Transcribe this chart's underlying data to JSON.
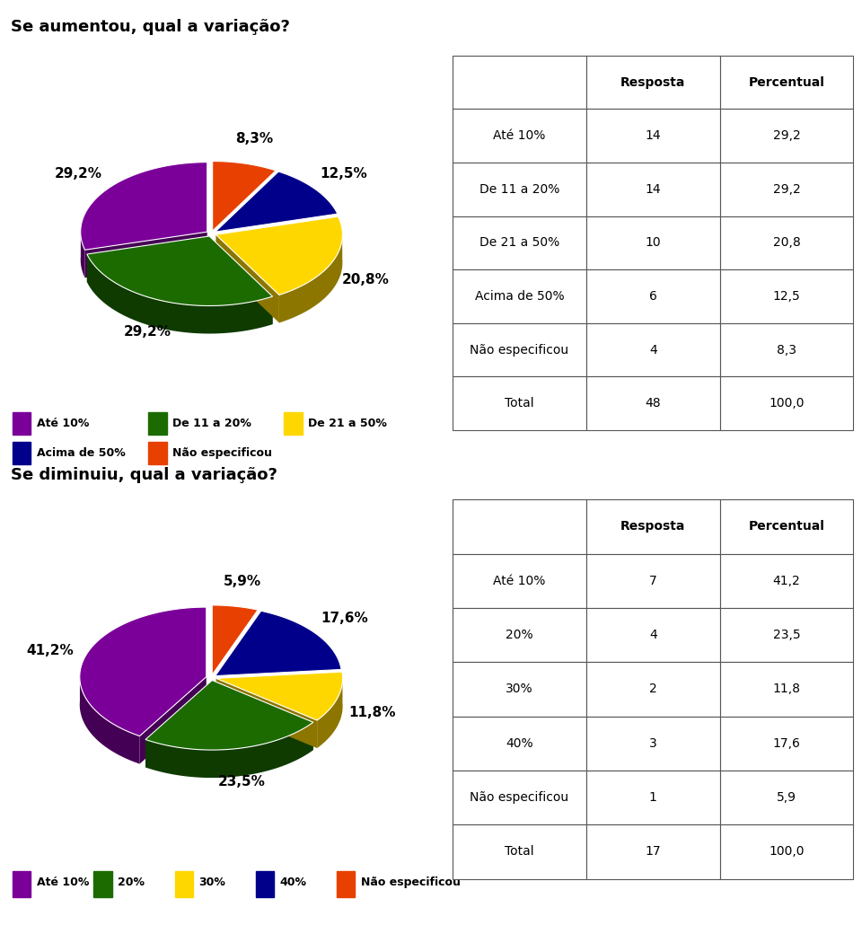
{
  "title1": "Se aumentou, qual a variação?",
  "title2": "Se diminuiu, qual a variação?",
  "title_bg": "#BDD7EE",
  "bg_color": "#FFFFFF",
  "pie1_labels": [
    "Até 10%",
    "De 11 a 20%",
    "De 21 a 50%",
    "Acima de 50%",
    "Não especificou"
  ],
  "pie1_values": [
    14,
    14,
    10,
    6,
    4
  ],
  "pie1_pct": [
    "29,2%",
    "29,2%",
    "20,8%",
    "12,5%",
    "8,3%"
  ],
  "pie1_colors": [
    "#7B0099",
    "#1B6B00",
    "#FFD700",
    "#00008B",
    "#E84000"
  ],
  "pie1_startangle": 90,
  "table1_rows": [
    "Até 10%",
    "De 11 a 20%",
    "De 21 a 50%",
    "Acima de 50%",
    "Não especificou",
    "Total"
  ],
  "table1_resposta": [
    "14",
    "14",
    "10",
    "6",
    "4",
    "48"
  ],
  "table1_percentual": [
    "29,2",
    "29,2",
    "20,8",
    "12,5",
    "8,3",
    "100,0"
  ],
  "pie2_labels": [
    "Até 10%",
    "20%",
    "30%",
    "40%",
    "Não especificou"
  ],
  "pie2_values": [
    7,
    4,
    2,
    3,
    1
  ],
  "pie2_pct": [
    "41,2%",
    "23,5%",
    "11,8%",
    "17,6%",
    "5,9%"
  ],
  "pie2_colors": [
    "#7B0099",
    "#1B6B00",
    "#FFD700",
    "#00008B",
    "#E84000"
  ],
  "pie2_startangle": 90,
  "table2_rows": [
    "Até 10%",
    "20%",
    "30%",
    "40%",
    "Não especificou",
    "Total"
  ],
  "table2_resposta": [
    "7",
    "4",
    "2",
    "3",
    "1",
    "17"
  ],
  "table2_percentual": [
    "41,2",
    "23,5",
    "11,8",
    "17,6",
    "5,9",
    "100,0"
  ],
  "legend1_items": [
    {
      "label": "Até 10%",
      "color": "#7B0099"
    },
    {
      "label": "De 11 a 20%",
      "color": "#1B6B00"
    },
    {
      "label": "De 21 a 50%",
      "color": "#FFD700"
    },
    {
      "label": "Acima de 50%",
      "color": "#00008B"
    },
    {
      "label": "Não especificou",
      "color": "#E84000"
    }
  ],
  "legend2_items": [
    {
      "label": "Até 10%",
      "color": "#7B0099"
    },
    {
      "label": "20%",
      "color": "#1B6B00"
    },
    {
      "label": "30%",
      "color": "#FFD700"
    },
    {
      "label": "40%",
      "color": "#00008B"
    },
    {
      "label": "Não especificou",
      "color": "#E84000"
    }
  ]
}
